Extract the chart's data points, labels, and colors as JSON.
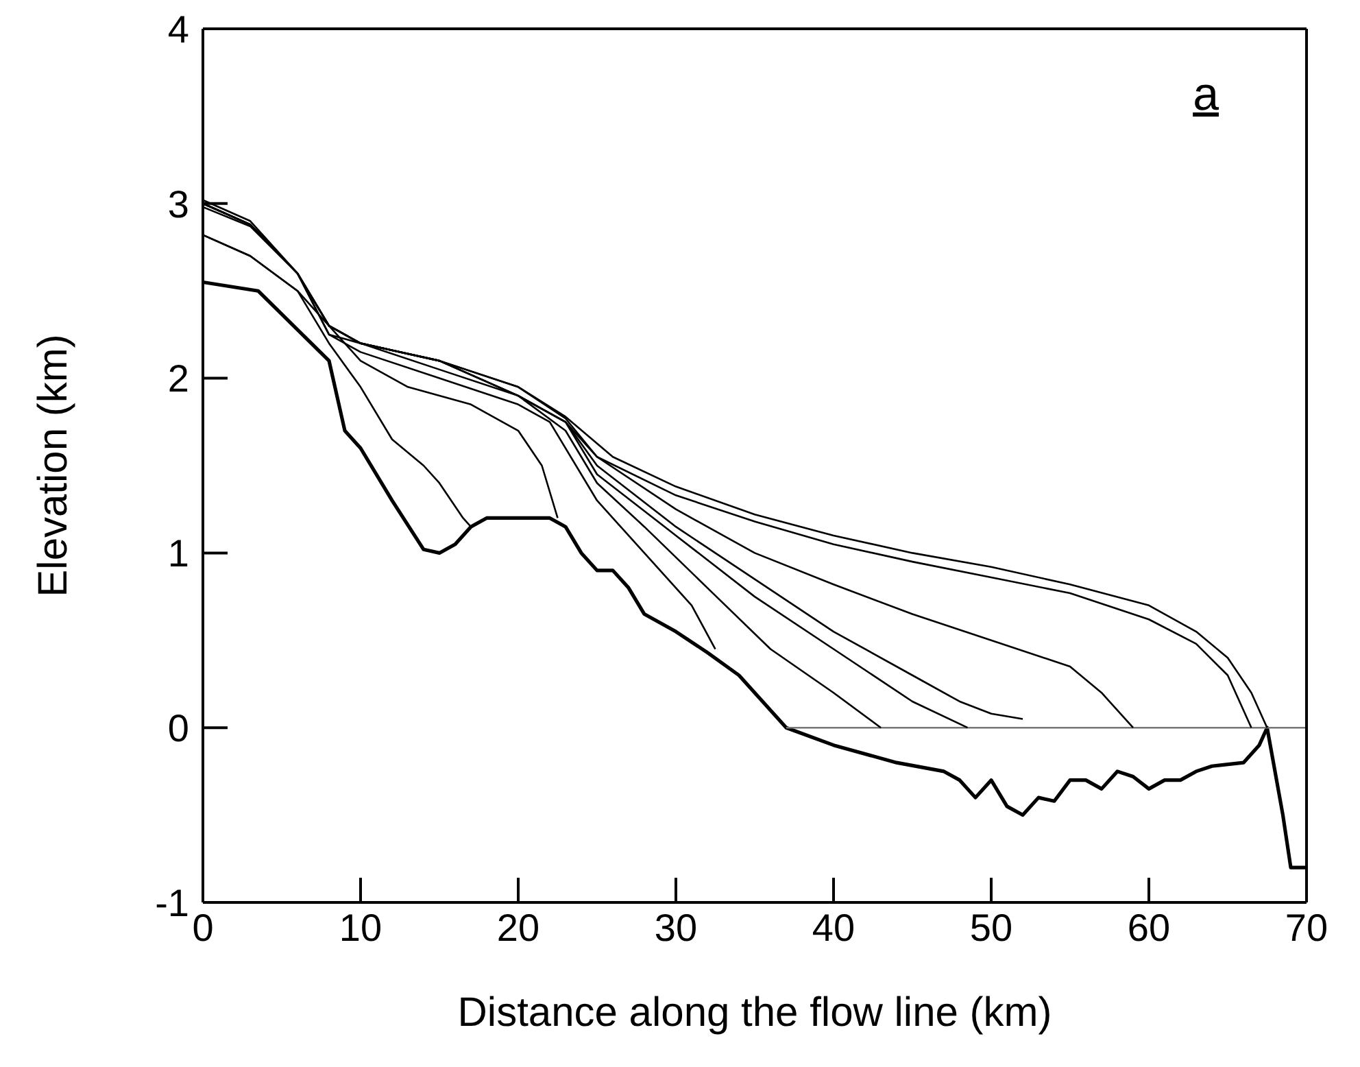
{
  "chart_data": {
    "type": "line",
    "xlabel": "Distance along the flow line (km)",
    "ylabel": "Elevation (km)",
    "annotations": [
      "a"
    ],
    "xlim": [
      0,
      70
    ],
    "ylim": [
      -1,
      4
    ],
    "xticks": [
      0,
      10,
      20,
      30,
      40,
      50,
      60,
      70
    ],
    "yticks": [
      -1,
      0,
      1,
      2,
      3,
      4
    ],
    "grid": false,
    "marker": "none",
    "line_style": "solid",
    "series": [
      {
        "color": "#000000",
        "x": [
          0,
          3.5,
          8,
          9,
          10,
          12,
          14,
          15,
          16,
          17,
          18,
          22,
          23,
          24,
          25,
          26,
          27,
          28,
          30,
          32,
          34,
          36,
          37,
          40,
          44,
          47,
          48,
          49,
          50,
          51,
          52,
          53,
          54,
          55,
          56,
          57,
          58,
          59,
          60,
          61,
          62,
          63,
          64,
          66,
          67,
          67.5,
          68.5,
          69,
          70
        ],
        "values": [
          2.55,
          2.5,
          2.1,
          1.7,
          1.6,
          1.3,
          1.02,
          1.0,
          1.05,
          1.15,
          1.2,
          1.2,
          1.15,
          1.0,
          0.9,
          0.9,
          0.8,
          0.65,
          0.55,
          0.43,
          0.3,
          0.1,
          0.0,
          -0.1,
          -0.2,
          -0.25,
          -0.3,
          -0.4,
          -0.3,
          -0.45,
          -0.5,
          -0.4,
          -0.42,
          -0.3,
          -0.3,
          -0.35,
          -0.25,
          -0.28,
          -0.35,
          -0.3,
          -0.3,
          -0.25,
          -0.22,
          -0.2,
          -0.1,
          0,
          -0.5,
          -0.8,
          -0.8
        ]
      },
      {
        "color": "#777777",
        "x": [
          37,
          70
        ],
        "values": [
          0,
          0
        ]
      },
      {
        "color": "#000000",
        "x": [
          0,
          3,
          6,
          8,
          10,
          15,
          20,
          23,
          26,
          30,
          35,
          40,
          45,
          50,
          55,
          60,
          63,
          65,
          66.5,
          67.5
        ],
        "values": [
          3.02,
          2.9,
          2.6,
          2.3,
          2.2,
          2.1,
          1.95,
          1.78,
          1.55,
          1.38,
          1.22,
          1.1,
          1.0,
          0.92,
          0.82,
          0.7,
          0.55,
          0.4,
          0.2,
          0
        ]
      },
      {
        "color": "#000000",
        "x": [
          0,
          3,
          6,
          8,
          10,
          15,
          20,
          23,
          25,
          30,
          35,
          40,
          45,
          50,
          55,
          60,
          63,
          65,
          66.5
        ],
        "values": [
          3.0,
          2.88,
          2.6,
          2.3,
          2.2,
          2.1,
          1.95,
          1.77,
          1.55,
          1.33,
          1.18,
          1.05,
          0.95,
          0.86,
          0.77,
          0.62,
          0.48,
          0.3,
          0
        ]
      },
      {
        "color": "#000000",
        "x": [
          0,
          3,
          6,
          8,
          10,
          15,
          20,
          23,
          25,
          30,
          35,
          40,
          45,
          50,
          55,
          57,
          59
        ],
        "values": [
          3.0,
          2.88,
          2.6,
          2.3,
          2.2,
          2.1,
          1.9,
          1.75,
          1.55,
          1.25,
          1.0,
          0.82,
          0.65,
          0.5,
          0.35,
          0.2,
          0
        ]
      },
      {
        "color": "#000000",
        "x": [
          0,
          3,
          6,
          8,
          10,
          15,
          20,
          23,
          25,
          30,
          35,
          40,
          45,
          48,
          50,
          52
        ],
        "values": [
          3.0,
          2.88,
          2.6,
          2.3,
          2.2,
          2.1,
          1.9,
          1.75,
          1.5,
          1.15,
          0.85,
          0.55,
          0.3,
          0.15,
          0.08,
          0.05
        ]
      },
      {
        "color": "#000000",
        "x": [
          0,
          3,
          6,
          8,
          10,
          15,
          20,
          23,
          25,
          30,
          35,
          40,
          45,
          48.5
        ],
        "values": [
          3.0,
          2.88,
          2.6,
          2.3,
          2.2,
          2.1,
          1.9,
          1.75,
          1.45,
          1.1,
          0.75,
          0.45,
          0.15,
          0
        ]
      },
      {
        "color": "#000000",
        "x": [
          0,
          3,
          6,
          8,
          10,
          15,
          20,
          23,
          25,
          28,
          32,
          36,
          40,
          43
        ],
        "values": [
          3.0,
          2.88,
          2.6,
          2.25,
          2.2,
          2.05,
          1.9,
          1.7,
          1.4,
          1.15,
          0.8,
          0.45,
          0.2,
          0
        ]
      },
      {
        "color": "#000000",
        "x": [
          0,
          3,
          6,
          8,
          10,
          15,
          20,
          22,
          25,
          28,
          31,
          32.5
        ],
        "values": [
          2.98,
          2.87,
          2.6,
          2.25,
          2.15,
          2.0,
          1.85,
          1.75,
          1.3,
          1.0,
          0.7,
          0.45
        ]
      },
      {
        "color": "#000000",
        "x": [
          0,
          3,
          6,
          8,
          10,
          13,
          17,
          20,
          21.5,
          22.5
        ],
        "values": [
          2.82,
          2.7,
          2.5,
          2.3,
          2.1,
          1.95,
          1.85,
          1.7,
          1.5,
          1.2
        ]
      },
      {
        "color": "#000000",
        "x": [
          0,
          3,
          6,
          8,
          10,
          12,
          14,
          15,
          16.5,
          17
        ],
        "values": [
          2.82,
          2.7,
          2.5,
          2.2,
          1.95,
          1.65,
          1.5,
          1.4,
          1.2,
          1.15
        ]
      }
    ]
  }
}
